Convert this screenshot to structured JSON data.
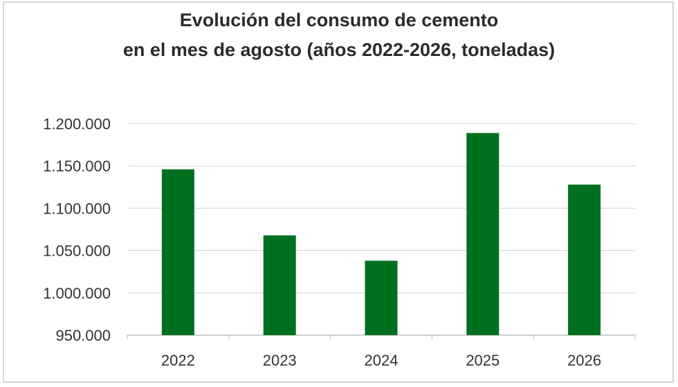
{
  "chart_data": {
    "type": "bar",
    "title_line1": "Evolución del consumo de cemento",
    "title_line2": "en el mes de agosto (años 2022-2026, toneladas)",
    "categories": [
      "2022",
      "2023",
      "2024",
      "2025",
      "2026"
    ],
    "values": [
      1146000,
      1068000,
      1038000,
      1189000,
      1128000
    ],
    "ylim": [
      950000,
      1200000
    ],
    "yticks": [
      950000,
      1000000,
      1050000,
      1100000,
      1150000,
      1200000
    ],
    "ytick_labels": [
      "950.000",
      "1.000.000",
      "1.050.000",
      "1.100.000",
      "1.150.000",
      "1.200.000"
    ],
    "grid": true,
    "bar_color": "#007020",
    "grid_color": "#d9d9d9",
    "xlabel": "",
    "ylabel": ""
  }
}
